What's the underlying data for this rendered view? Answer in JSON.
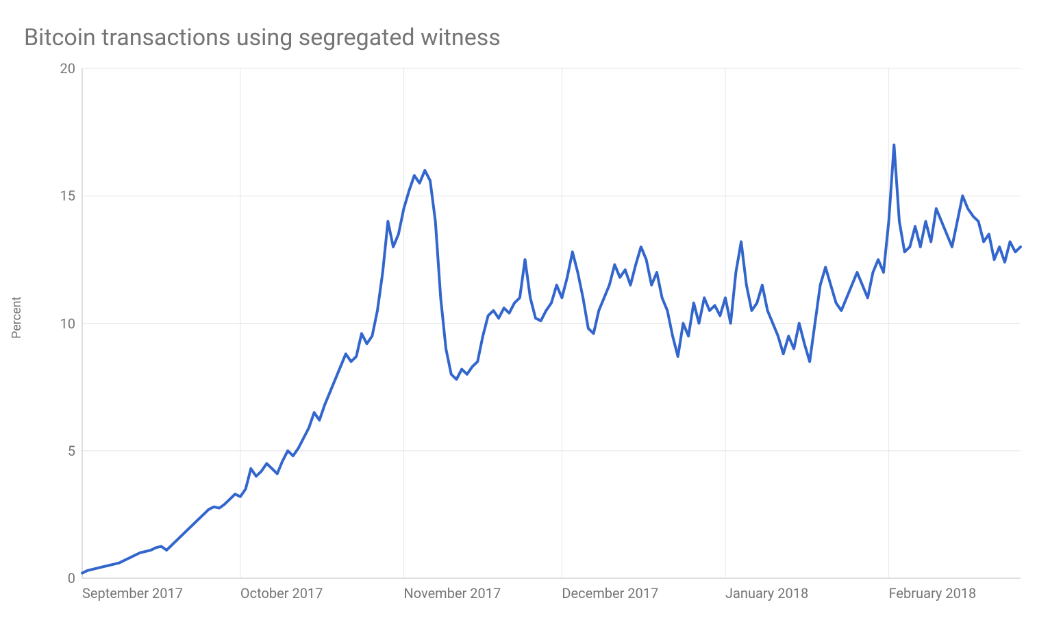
{
  "chart": {
    "type": "line",
    "title": "Bitcoin transactions using segregated witness",
    "title_fontsize": 34,
    "title_color": "#757575",
    "ylabel": "Percent",
    "label_fontsize": 18,
    "label_color": "#757575",
    "background_color": "#ffffff",
    "grid_color": "#e6e6e6",
    "axis_line_color": "#bdbdbd",
    "line_color": "#3366cc",
    "line_width": 4,
    "ylim": [
      0,
      20
    ],
    "yticks": [
      0,
      5,
      10,
      15,
      20
    ],
    "tick_fontsize": 20,
    "tick_color": "#757575",
    "x_start_index": 0,
    "x_end_index": 178,
    "x_gridlines_at": [
      0,
      30,
      61,
      91,
      122,
      153
    ],
    "x_tick_labels": [
      "September 2017",
      "October 2017",
      "November 2017",
      "December 2017",
      "January 2018",
      "February 2018"
    ],
    "series": [
      0.2,
      0.3,
      0.35,
      0.4,
      0.45,
      0.5,
      0.55,
      0.6,
      0.7,
      0.8,
      0.9,
      1.0,
      1.05,
      1.1,
      1.2,
      1.25,
      1.1,
      1.3,
      1.5,
      1.7,
      1.9,
      2.1,
      2.3,
      2.5,
      2.7,
      2.8,
      2.75,
      2.9,
      3.1,
      3.3,
      3.2,
      3.5,
      4.3,
      4.0,
      4.2,
      4.5,
      4.3,
      4.1,
      4.6,
      5.0,
      4.8,
      5.1,
      5.5,
      5.9,
      6.5,
      6.2,
      6.8,
      7.3,
      7.8,
      8.3,
      8.8,
      8.5,
      8.7,
      9.6,
      9.2,
      9.5,
      10.5,
      12.0,
      14.0,
      13.0,
      13.5,
      14.5,
      15.2,
      15.8,
      15.5,
      16.0,
      15.6,
      14.0,
      11.0,
      9.0,
      8.0,
      7.8,
      8.2,
      8.0,
      8.3,
      8.5,
      9.5,
      10.3,
      10.5,
      10.2,
      10.6,
      10.4,
      10.8,
      11.0,
      12.5,
      11.0,
      10.2,
      10.1,
      10.5,
      10.8,
      11.5,
      11.0,
      11.8,
      12.8,
      12.0,
      11.0,
      9.8,
      9.6,
      10.5,
      11.0,
      11.5,
      12.3,
      11.8,
      12.1,
      11.5,
      12.3,
      13.0,
      12.5,
      11.5,
      12.0,
      11.0,
      10.5,
      9.5,
      8.7,
      10.0,
      9.5,
      10.8,
      10.0,
      11.0,
      10.5,
      10.7,
      10.3,
      11.0,
      10.0,
      12.0,
      13.2,
      11.5,
      10.5,
      10.8,
      11.5,
      10.5,
      10.0,
      9.5,
      8.8,
      9.5,
      9.0,
      10.0,
      9.2,
      8.5,
      10.0,
      11.5,
      12.2,
      11.5,
      10.8,
      10.5,
      11.0,
      11.5,
      12.0,
      11.5,
      11.0,
      12.0,
      12.5,
      12.0,
      14.0,
      17.0,
      14.0,
      12.8,
      13.0,
      13.8,
      13.0,
      14.0,
      13.2,
      14.5,
      14.0,
      13.5,
      13.0,
      14.0,
      15.0,
      14.5,
      14.2,
      14.0,
      13.2,
      13.5,
      12.5,
      13.0,
      12.4,
      13.2,
      12.8,
      13.0
    ]
  }
}
